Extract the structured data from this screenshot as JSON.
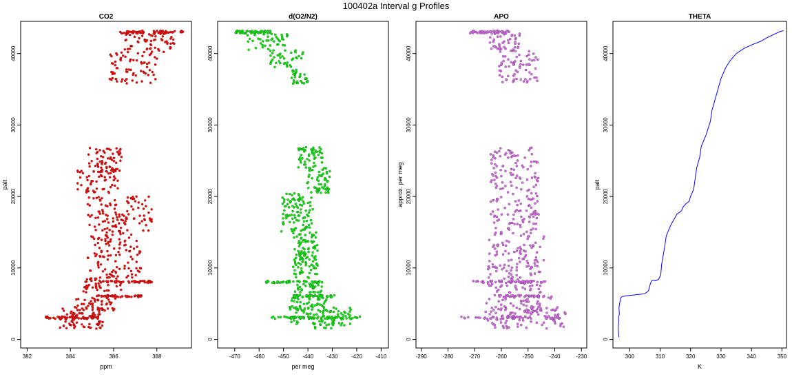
{
  "figure_title": "100402a   Interval g Profiles",
  "chart_data": [
    {
      "type": "scatter",
      "title": "CO2",
      "xlabel": "ppm",
      "ylabel": "palt",
      "xlim": [
        381.7,
        389.6
      ],
      "ylim": [
        -1200,
        44500
      ],
      "xticks": [
        382,
        384,
        386,
        388
      ],
      "yticks": [
        0,
        10000,
        20000,
        30000,
        40000
      ],
      "color": "#ff0000",
      "clusters": [
        {
          "y": [
            1500,
            4500
          ],
          "x": [
            383.5,
            385.5
          ],
          "n": 80
        },
        {
          "y": [
            2900,
            3200
          ],
          "x": [
            382.8,
            385.3
          ],
          "n": 50
        },
        {
          "y": [
            4000,
            6200
          ],
          "x": [
            384.2,
            386.2
          ],
          "n": 50
        },
        {
          "y": [
            5900,
            6200
          ],
          "x": [
            385.2,
            387.3
          ],
          "n": 40
        },
        {
          "y": [
            6500,
            8600
          ],
          "x": [
            384.6,
            386.4
          ],
          "n": 40
        },
        {
          "y": [
            7900,
            8200
          ],
          "x": [
            385.5,
            387.8
          ],
          "n": 45
        },
        {
          "y": [
            8600,
            15000
          ],
          "x": [
            384.8,
            387.3
          ],
          "n": 110
        },
        {
          "y": [
            15000,
            20000
          ],
          "x": [
            384.8,
            387.8
          ],
          "n": 110
        },
        {
          "y": [
            20500,
            24000
          ],
          "x": [
            384.3,
            386.3
          ],
          "n": 70
        },
        {
          "y": [
            24000,
            26800
          ],
          "x": [
            384.8,
            386.4
          ],
          "n": 50
        },
        {
          "y": [
            35800,
            40200
          ],
          "x": [
            385.8,
            388.0
          ],
          "n": 70
        },
        {
          "y": [
            40200,
            42900
          ],
          "x": [
            386.5,
            388.8
          ],
          "n": 60
        },
        {
          "y": [
            42800,
            43200
          ],
          "x": [
            386.3,
            389.3
          ],
          "n": 55
        }
      ]
    },
    {
      "type": "scatter",
      "title": "d(O2/N2)",
      "xlabel": "per meg",
      "ylabel": "",
      "xlim": [
        -477,
        -407
      ],
      "ylim": [
        -1200,
        44500
      ],
      "xticks": [
        -470,
        -460,
        -450,
        -440,
        -430,
        -420,
        -410
      ],
      "yticks": [
        0,
        10000,
        20000,
        30000,
        40000
      ],
      "color": "#00ee00",
      "clusters": [
        {
          "y": [
            1500,
            4500
          ],
          "x": [
            -447,
            -422
          ],
          "n": 90
        },
        {
          "y": [
            2900,
            3200
          ],
          "x": [
            -455,
            -418
          ],
          "n": 50
        },
        {
          "y": [
            4000,
            6200
          ],
          "x": [
            -448,
            -430
          ],
          "n": 50
        },
        {
          "y": [
            5900,
            6200
          ],
          "x": [
            -446,
            -428
          ],
          "n": 35
        },
        {
          "y": [
            6500,
            7800
          ],
          "x": [
            -446,
            -434
          ],
          "n": 30
        },
        {
          "y": [
            7900,
            8200
          ],
          "x": [
            -458,
            -434
          ],
          "n": 45
        },
        {
          "y": [
            8600,
            15000
          ],
          "x": [
            -446,
            -436
          ],
          "n": 110
        },
        {
          "y": [
            15000,
            20500
          ],
          "x": [
            -451,
            -438
          ],
          "n": 100
        },
        {
          "y": [
            20500,
            24000
          ],
          "x": [
            -441,
            -431
          ],
          "n": 60
        },
        {
          "y": [
            24000,
            27000
          ],
          "x": [
            -444,
            -434
          ],
          "n": 50
        },
        {
          "y": [
            35800,
            37800
          ],
          "x": [
            -447,
            -440
          ],
          "n": 30
        },
        {
          "y": [
            37800,
            40500
          ],
          "x": [
            -456,
            -442
          ],
          "n": 40
        },
        {
          "y": [
            40500,
            42800
          ],
          "x": [
            -465,
            -448
          ],
          "n": 40
        },
        {
          "y": [
            42800,
            43200
          ],
          "x": [
            -470,
            -455
          ],
          "n": 45
        }
      ]
    },
    {
      "type": "scatter",
      "title": "APO",
      "xlabel": "",
      "ylabel": "approx. per meg",
      "xlim": [
        -292,
        -228
      ],
      "ylim": [
        -1200,
        44500
      ],
      "xticks": [
        -290,
        -280,
        -270,
        -260,
        -250,
        -240,
        -230
      ],
      "yticks": [
        0,
        10000,
        20000,
        30000,
        40000
      ],
      "color": "#dd66ee",
      "clusters": [
        {
          "y": [
            1500,
            4500
          ],
          "x": [
            -266,
            -236
          ],
          "n": 90
        },
        {
          "y": [
            2900,
            3200
          ],
          "x": [
            -275,
            -236
          ],
          "n": 50
        },
        {
          "y": [
            4000,
            6200
          ],
          "x": [
            -266,
            -241
          ],
          "n": 50
        },
        {
          "y": [
            5900,
            6200
          ],
          "x": [
            -264,
            -244
          ],
          "n": 35
        },
        {
          "y": [
            7900,
            8200
          ],
          "x": [
            -271,
            -243
          ],
          "n": 45
        },
        {
          "y": [
            6500,
            15000
          ],
          "x": [
            -265,
            -244
          ],
          "n": 150
        },
        {
          "y": [
            15000,
            27000
          ],
          "x": [
            -264,
            -246
          ],
          "n": 170
        },
        {
          "y": [
            35800,
            40500
          ],
          "x": [
            -261,
            -246
          ],
          "n": 70
        },
        {
          "y": [
            40500,
            42800
          ],
          "x": [
            -265,
            -253
          ],
          "n": 40
        },
        {
          "y": [
            42800,
            43200
          ],
          "x": [
            -272,
            -257
          ],
          "n": 45
        }
      ]
    },
    {
      "type": "line",
      "title": "THETA",
      "xlabel": "K",
      "ylabel": "palt",
      "xlim": [
        294.5,
        351.5
      ],
      "ylim": [
        -1200,
        44500
      ],
      "xticks": [
        300,
        310,
        320,
        330,
        340,
        350
      ],
      "yticks": [
        0,
        10000,
        20000,
        30000,
        40000
      ],
      "color": "#0000ff",
      "series": [
        {
          "x": [
            296.5,
            296.2,
            296.4,
            296.3,
            296.6,
            296.5,
            297.0,
            297.5,
            299.0,
            301.0,
            303.0,
            305.0,
            306.2,
            306.6,
            306.8,
            307.2,
            308.2,
            308.5,
            309.5,
            310.2,
            310.5,
            310.9,
            311.5,
            312.0,
            313.5,
            315.5,
            317.0,
            317.5,
            318.5,
            319.5,
            320.0,
            321.0,
            321.5,
            322.0,
            323.0,
            323.5,
            325.0,
            326.5,
            327.0,
            328.0,
            329.0,
            330.0,
            331.5,
            333.0,
            335.0,
            337.5,
            340.0,
            343.0,
            345.0,
            347.0,
            348.5,
            349.5,
            350.5
          ],
          "y": [
            300,
            1500,
            2500,
            3100,
            3500,
            4500,
            5800,
            6000,
            6100,
            6200,
            6300,
            6400,
            6800,
            7500,
            7800,
            8200,
            8300,
            8200,
            8400,
            9000,
            10500,
            11500,
            13000,
            14500,
            16000,
            17500,
            18000,
            18500,
            19000,
            19300,
            20000,
            21000,
            22500,
            24000,
            25500,
            27000,
            28500,
            30500,
            32000,
            33500,
            35000,
            36500,
            38000,
            39000,
            40000,
            40700,
            41200,
            41700,
            42200,
            42600,
            42900,
            43100,
            43200
          ]
        }
      ]
    }
  ]
}
